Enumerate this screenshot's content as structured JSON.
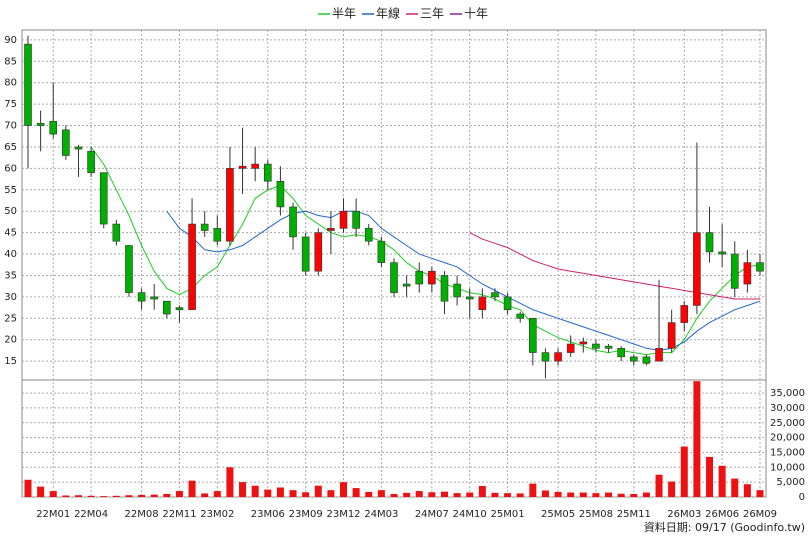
{
  "chart_data": [
    {
      "type": "candlestick",
      "categories": [
        null,
        null,
        "22M01",
        null,
        null,
        "22M04",
        null,
        null,
        null,
        "22M08",
        null,
        null,
        "22M11",
        null,
        null,
        "23M02",
        null,
        null,
        null,
        "23M06",
        null,
        null,
        "23M09",
        null,
        null,
        "23M12",
        null,
        null,
        "24M03",
        null,
        null,
        null,
        "24M07",
        null,
        null,
        "24M10",
        null,
        null,
        "25M01",
        null,
        null,
        null,
        "25M05",
        null,
        null,
        "25M08",
        null,
        null,
        "25M11",
        null,
        null,
        null,
        "26M03",
        null,
        null,
        "26M06",
        null,
        null,
        "26M09"
      ],
      "open": [
        89,
        70.5,
        71,
        69,
        65,
        64,
        59,
        47,
        42,
        31,
        30,
        29,
        27.5,
        27,
        47,
        46,
        43,
        60,
        60,
        61,
        57,
        51,
        44,
        36,
        45.5,
        46,
        50,
        46,
        43,
        38,
        33,
        36,
        33,
        35,
        33,
        30,
        27,
        31,
        30,
        26,
        25,
        17,
        15,
        17,
        19,
        19,
        18.5,
        18,
        16,
        16,
        15,
        18,
        24,
        28,
        45,
        40.5,
        40,
        33,
        38
      ],
      "high": [
        91,
        73.5,
        80,
        70,
        65.5,
        65,
        59,
        48,
        42,
        32,
        33,
        29,
        28,
        53,
        50,
        49,
        65,
        69.5,
        65,
        62,
        60.5,
        52,
        45,
        46,
        50,
        53,
        53,
        47,
        44,
        39,
        35,
        38,
        37,
        36,
        35,
        32,
        32,
        32,
        31,
        26.5,
        25,
        18,
        18,
        21,
        20.5,
        20,
        19,
        18.5,
        16.5,
        16.5,
        34,
        27,
        29,
        66,
        51,
        47,
        43,
        41,
        40
      ],
      "low": [
        60,
        64,
        67,
        62,
        58,
        58,
        46,
        42,
        30,
        27,
        27,
        25,
        24,
        27,
        44,
        42,
        42,
        54,
        57,
        55,
        49,
        41,
        35,
        35,
        40,
        45,
        44,
        42,
        37,
        30,
        30,
        31,
        31,
        26,
        28,
        25,
        25,
        29,
        26,
        24,
        14,
        11,
        14,
        16,
        17,
        17,
        17,
        15,
        14,
        14,
        15,
        17,
        22,
        26,
        38,
        37,
        30,
        31,
        35
      ],
      "close": [
        70,
        70,
        68,
        63,
        64.5,
        59,
        47,
        43,
        31,
        29,
        29.5,
        26,
        27,
        47,
        45.5,
        43,
        60,
        60.5,
        61,
        57,
        51,
        44,
        36,
        45,
        46,
        50,
        46,
        43,
        38,
        31,
        32.5,
        33,
        36,
        29,
        30,
        29.5,
        30,
        30,
        27,
        25,
        17,
        15,
        17,
        19,
        19.5,
        18,
        18,
        16,
        15,
        14.5,
        18,
        24,
        28,
        45,
        40.5,
        40,
        32,
        38,
        36
      ],
      "up_color": "#ff0000",
      "down_color": "#00b000",
      "ylim": [
        10.6,
        92.3
      ],
      "yticks": [
        15,
        20,
        25,
        30,
        35,
        40,
        45,
        50,
        55,
        60,
        65,
        70,
        75,
        80,
        85,
        90
      ],
      "grid": true,
      "series": [
        {
          "name": "半年",
          "color": "#22cc22",
          "values": [
            null,
            null,
            null,
            null,
            null,
            65,
            61,
            55,
            49,
            42,
            36,
            32,
            30.5,
            32,
            35,
            37,
            42,
            47,
            53,
            55,
            56,
            53,
            49,
            47,
            45,
            44,
            44.5,
            44,
            43,
            41,
            38,
            36,
            35,
            33,
            32,
            31,
            30.5,
            29.5,
            28,
            27,
            23.5,
            22,
            20.5,
            19.5,
            18.5,
            17.5,
            17,
            17.5,
            17,
            16.5,
            17,
            17,
            20,
            25,
            29,
            32,
            35,
            37,
            37.5
          ]
        },
        {
          "name": "年線",
          "color": "#2266cc",
          "values": [
            null,
            null,
            null,
            null,
            null,
            null,
            null,
            null,
            null,
            null,
            null,
            50,
            46,
            44,
            41,
            40.5,
            41,
            42,
            44,
            46,
            48,
            49.5,
            50,
            49,
            48.5,
            50,
            50,
            49,
            46,
            44,
            42,
            40,
            39,
            38,
            37,
            35,
            33,
            31.5,
            30,
            28.5,
            27,
            26,
            25,
            24,
            23,
            22,
            21,
            20,
            19,
            18,
            17.5,
            18,
            19.5,
            22,
            24,
            25.5,
            27,
            28,
            29
          ]
        },
        {
          "name": "三年",
          "color": "#cc2266",
          "values": [
            null,
            null,
            null,
            null,
            null,
            null,
            null,
            null,
            null,
            null,
            null,
            null,
            null,
            null,
            null,
            null,
            null,
            null,
            null,
            null,
            null,
            null,
            null,
            null,
            null,
            null,
            null,
            null,
            null,
            null,
            null,
            null,
            null,
            null,
            null,
            45,
            43.5,
            42.5,
            41.5,
            40,
            38.5,
            37.5,
            36.5,
            36,
            35.5,
            35,
            34.5,
            34,
            33.5,
            33,
            32.5,
            32,
            31.5,
            31,
            30.5,
            30,
            29.5,
            29.5,
            29.5
          ]
        },
        {
          "name": "十年",
          "color": "#882299",
          "values": [
            null,
            null,
            null,
            null,
            null,
            null,
            null,
            null,
            null,
            null,
            null,
            null,
            null,
            null,
            null,
            null,
            null,
            null,
            null,
            null,
            null,
            null,
            null,
            null,
            null,
            null,
            null,
            null,
            null,
            null,
            null,
            null,
            null,
            null,
            null,
            null,
            null,
            null,
            null,
            null,
            null,
            null,
            null,
            null,
            null,
            null,
            null,
            null,
            null,
            null,
            null,
            null,
            null,
            null,
            null,
            null,
            null,
            null,
            null
          ]
        }
      ]
    },
    {
      "type": "bar",
      "values": [
        5800,
        3500,
        2000,
        500,
        600,
        400,
        300,
        400,
        600,
        700,
        800,
        1000,
        2000,
        5500,
        1200,
        2000,
        10000,
        5000,
        3800,
        2500,
        3200,
        2300,
        1600,
        3800,
        2300,
        5000,
        3000,
        1700,
        2300,
        1000,
        1400,
        2000,
        1600,
        1800,
        1300,
        1500,
        3700,
        1400,
        1300,
        1200,
        4500,
        2200,
        1700,
        1500,
        1500,
        1300,
        1500,
        1100,
        1000,
        1500,
        7500,
        5200,
        17000,
        39000,
        13500,
        10500,
        6200,
        4300,
        2300
      ],
      "color": "#ee1111",
      "ylim": [
        0,
        39400
      ],
      "yticks": [
        0,
        {
          "value": 5000,
          "label": "5,000"
        },
        {
          "value": 10000,
          "label": "10,000"
        },
        {
          "value": 15000,
          "label": "15,000"
        },
        {
          "value": 20000,
          "label": "20,000"
        },
        {
          "value": 25000,
          "label": "25,000"
        },
        {
          "value": 30000,
          "label": "30,000"
        },
        {
          "value": 35000,
          "label": "35,000"
        }
      ],
      "grid": true,
      "note": "資料日期: 09/17 (Goodinfo.tw)"
    }
  ]
}
